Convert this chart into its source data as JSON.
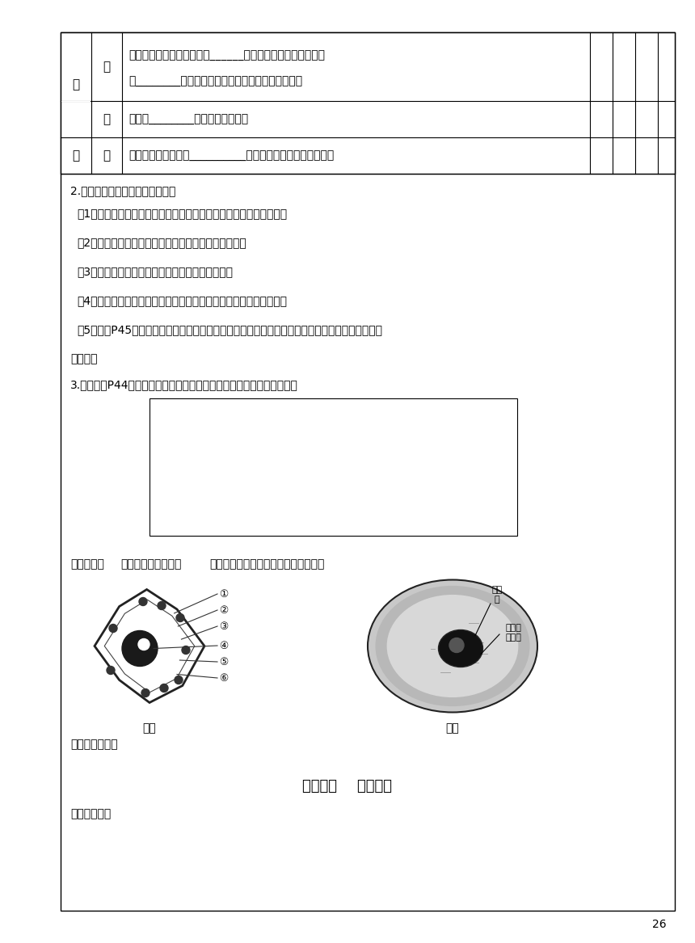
{
  "bg_color": "#ffffff",
  "border_color": "#000000",
  "text_color": "#000000",
  "table_rows": [
    {
      "label1": "过",
      "label2": "盖",
      "content_line1": "用镊子夹起盖玻片，使它的______先接触载玻片上的水滴，然",
      "content_line2": "后________地放下。（如果操作不当，会出现气泡）",
      "span": true
    },
    {
      "label1": "",
      "label2": "染",
      "content_line1": "把一滴________滴在盖玻片的一侧",
      "content_line2": "",
      "span": false
    },
    {
      "label1": "程",
      "label2": "吸",
      "content_line1": "用吸水纸从盖玻片的__________吸引，使碘液浸润标本的全部",
      "content_line2": "",
      "span": false
    }
  ],
  "questions": [
    "2.根据实验操作，解决以下问题：",
    "（1）在制作临时装片时首先要在载玻片上滴什么溶液？目的是什么？",
    "（2）撕取的材料为什么要完全浸入水滴中并充分展平？",
    "（3）在盖上盖玻片时要怎么样操作？目的是什么？",
    "（4）用什么试剂进行染色？为什么要染色？染色最深的是什么结构？",
    "（5）结合P45图，观察洋葱细胞找到细胞壁、细胞质、细胞核，并分析能否看到细胞膜、叶绿体？",
    "为什么？"
  ],
  "draw_instruction": "3.按照课本P44生物图的画法及注意事项，绘制洋葱鳞片叶内表皮细胞图",
  "main_q3_prefix": "主问题三：",
  "main_q3_title_bold": "植物细胞的基本结构",
  "main_q3_title_normal": "认识植物细胞各部分结构名称和作用：",
  "cell_left_label": "甲图",
  "cell_right_label": "乙图",
  "student_note": "学生问题梳理：",
  "part2_title": "第二部分    达标检测",
  "self_check": "【自主检测】",
  "page_num": "26"
}
